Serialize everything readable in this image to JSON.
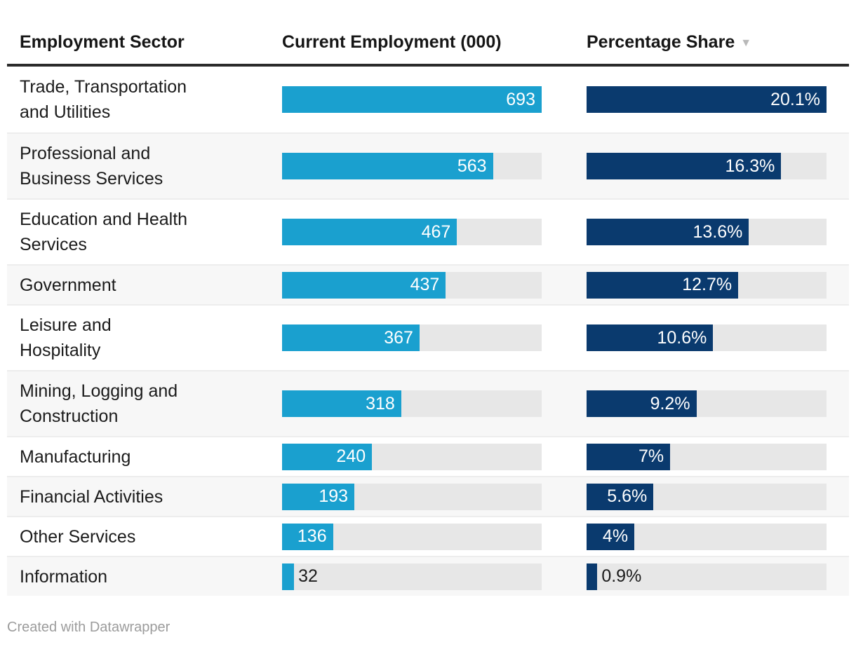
{
  "table": {
    "columns": [
      {
        "label": "Employment Sector"
      },
      {
        "label": "Current Employment (000)"
      },
      {
        "label": "Percentage Share",
        "sort_icon": "▼",
        "sorted": "descending"
      }
    ],
    "max_employment": 693,
    "max_share": 20.1,
    "rows": [
      {
        "name": "Trade, Transportation and Utilities",
        "name_lines": [
          "Trade, Transportation",
          "and Utilities"
        ],
        "employment": 693,
        "employment_label": "693",
        "share": 20.1,
        "share_label": "20.1%"
      },
      {
        "name": "Professional and Business Services",
        "name_lines": [
          "Professional and",
          "Business Services"
        ],
        "employment": 563,
        "employment_label": "563",
        "share": 16.3,
        "share_label": "16.3%"
      },
      {
        "name": "Education and Health Services",
        "name_lines": [
          "Education and Health",
          "Services"
        ],
        "employment": 467,
        "employment_label": "467",
        "share": 13.6,
        "share_label": "13.6%"
      },
      {
        "name": "Government",
        "name_lines": [
          "Government"
        ],
        "employment": 437,
        "employment_label": "437",
        "share": 12.7,
        "share_label": "12.7%"
      },
      {
        "name": "Leisure and Hospitality",
        "name_lines": [
          "Leisure and",
          "Hospitality"
        ],
        "employment": 367,
        "employment_label": "367",
        "share": 10.6,
        "share_label": "10.6%"
      },
      {
        "name": "Mining, Logging and Construction",
        "name_lines": [
          "Mining, Logging and",
          "Construction"
        ],
        "employment": 318,
        "employment_label": "318",
        "share": 9.2,
        "share_label": "9.2%"
      },
      {
        "name": "Manufacturing",
        "name_lines": [
          "Manufacturing"
        ],
        "employment": 240,
        "employment_label": "240",
        "share": 7,
        "share_label": "7%"
      },
      {
        "name": "Financial Activities",
        "name_lines": [
          "Financial Activities"
        ],
        "employment": 193,
        "employment_label": "193",
        "share": 5.6,
        "share_label": "5.6%"
      },
      {
        "name": "Other Services",
        "name_lines": [
          "Other Services"
        ],
        "employment": 136,
        "employment_label": "136",
        "share": 4,
        "share_label": "4%"
      },
      {
        "name": "Information",
        "name_lines": [
          "Information"
        ],
        "employment": 32,
        "employment_label": "32",
        "share": 0.9,
        "share_label": "0.9%"
      }
    ]
  },
  "footer": {
    "credit": "Created with Datawrapper"
  },
  "colors": {
    "employment_bar": "#1aa0cf",
    "share_bar": "#0a3a6e",
    "bar_track": "#e7e7e7",
    "row_stripe": "#f7f7f7",
    "header_border": "#2b2b2b",
    "text": "#1b1b1b",
    "muted_text": "#9c9c9c",
    "sort_arrow": "#b9b9b9"
  },
  "chart_data": {
    "type": "table",
    "title": "",
    "columns": [
      "Employment Sector",
      "Current Employment (000)",
      "Percentage Share"
    ],
    "sorted_by": "Percentage Share (descending)",
    "embedded_bars": [
      {
        "column": "Current Employment (000)",
        "type": "bar",
        "max": 693,
        "color": "#1aa0cf"
      },
      {
        "column": "Percentage Share",
        "type": "bar",
        "max": 20.1,
        "color": "#0a3a6e"
      }
    ],
    "categories": [
      "Trade, Transportation and Utilities",
      "Professional and Business Services",
      "Education and Health Services",
      "Government",
      "Leisure and Hospitality",
      "Mining, Logging and Construction",
      "Manufacturing",
      "Financial Activities",
      "Other Services",
      "Information"
    ],
    "series": [
      {
        "name": "Current Employment (000)",
        "values": [
          693,
          563,
          467,
          437,
          367,
          318,
          240,
          193,
          136,
          32
        ]
      },
      {
        "name": "Percentage Share",
        "values": [
          20.1,
          16.3,
          13.6,
          12.7,
          10.6,
          9.2,
          7,
          5.6,
          4,
          0.9
        ]
      }
    ]
  }
}
